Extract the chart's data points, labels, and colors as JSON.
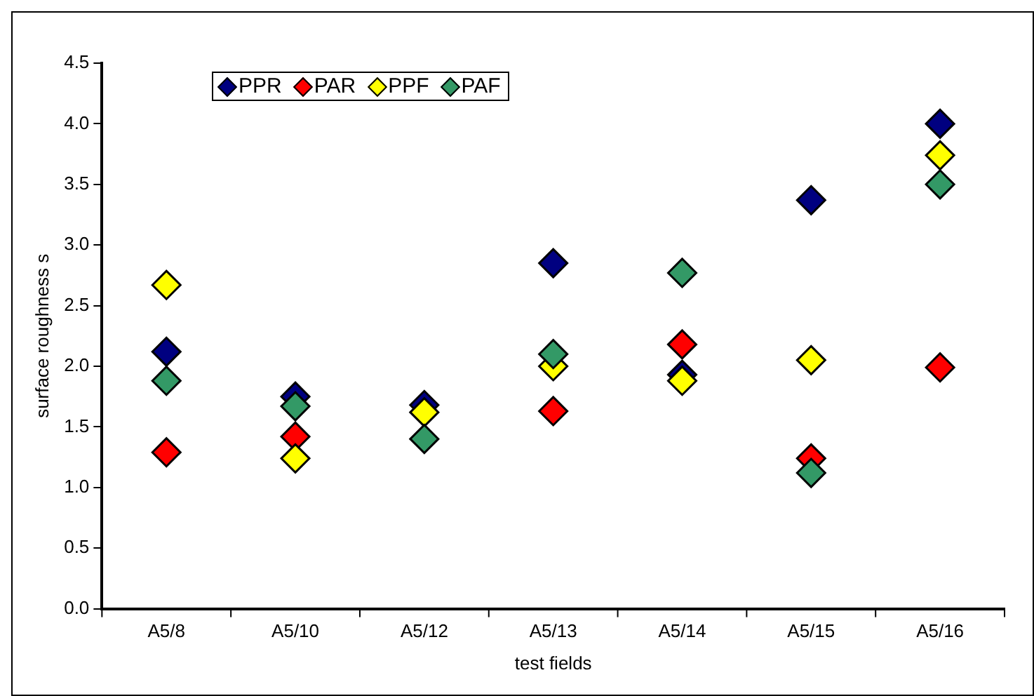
{
  "chart_data": {
    "type": "scatter",
    "xlabel": "test fields",
    "ylabel": "surface roughness s",
    "categories": [
      "A5/8",
      "A5/10",
      "A5/12",
      "A5/13",
      "A5/14",
      "A5/15",
      "A5/16"
    ],
    "series": [
      {
        "name": "PPR",
        "color": "#000080",
        "values": [
          2.12,
          1.75,
          1.68,
          2.85,
          1.93,
          3.37,
          4.0
        ]
      },
      {
        "name": "PAR",
        "color": "#ff0000",
        "values": [
          1.29,
          1.42,
          null,
          1.63,
          2.18,
          1.24,
          1.99
        ]
      },
      {
        "name": "PPF",
        "color": "#ffff00",
        "values": [
          2.67,
          1.24,
          1.62,
          2.0,
          1.88,
          2.05,
          3.74
        ]
      },
      {
        "name": "PAF",
        "color": "#339966",
        "values": [
          1.88,
          1.67,
          1.4,
          2.1,
          2.77,
          1.12,
          3.5
        ]
      }
    ],
    "ylim": [
      0,
      4.5
    ],
    "yticks": [
      {
        "value": 0,
        "label": "0.0"
      },
      {
        "value": 0.5,
        "label": "0.5"
      },
      {
        "value": 1,
        "label": "1.0"
      },
      {
        "value": 1.5,
        "label": "1.5"
      },
      {
        "value": 2,
        "label": "2.0"
      },
      {
        "value": 2.5,
        "label": "2.5"
      },
      {
        "value": 3,
        "label": "3.0"
      },
      {
        "value": 3.5,
        "label": "3.5"
      },
      {
        "value": 4,
        "label": "4.0"
      },
      {
        "value": 4.5,
        "label": "4.5"
      }
    ],
    "legend": "top left",
    "marker": "diamond",
    "grid": false
  }
}
